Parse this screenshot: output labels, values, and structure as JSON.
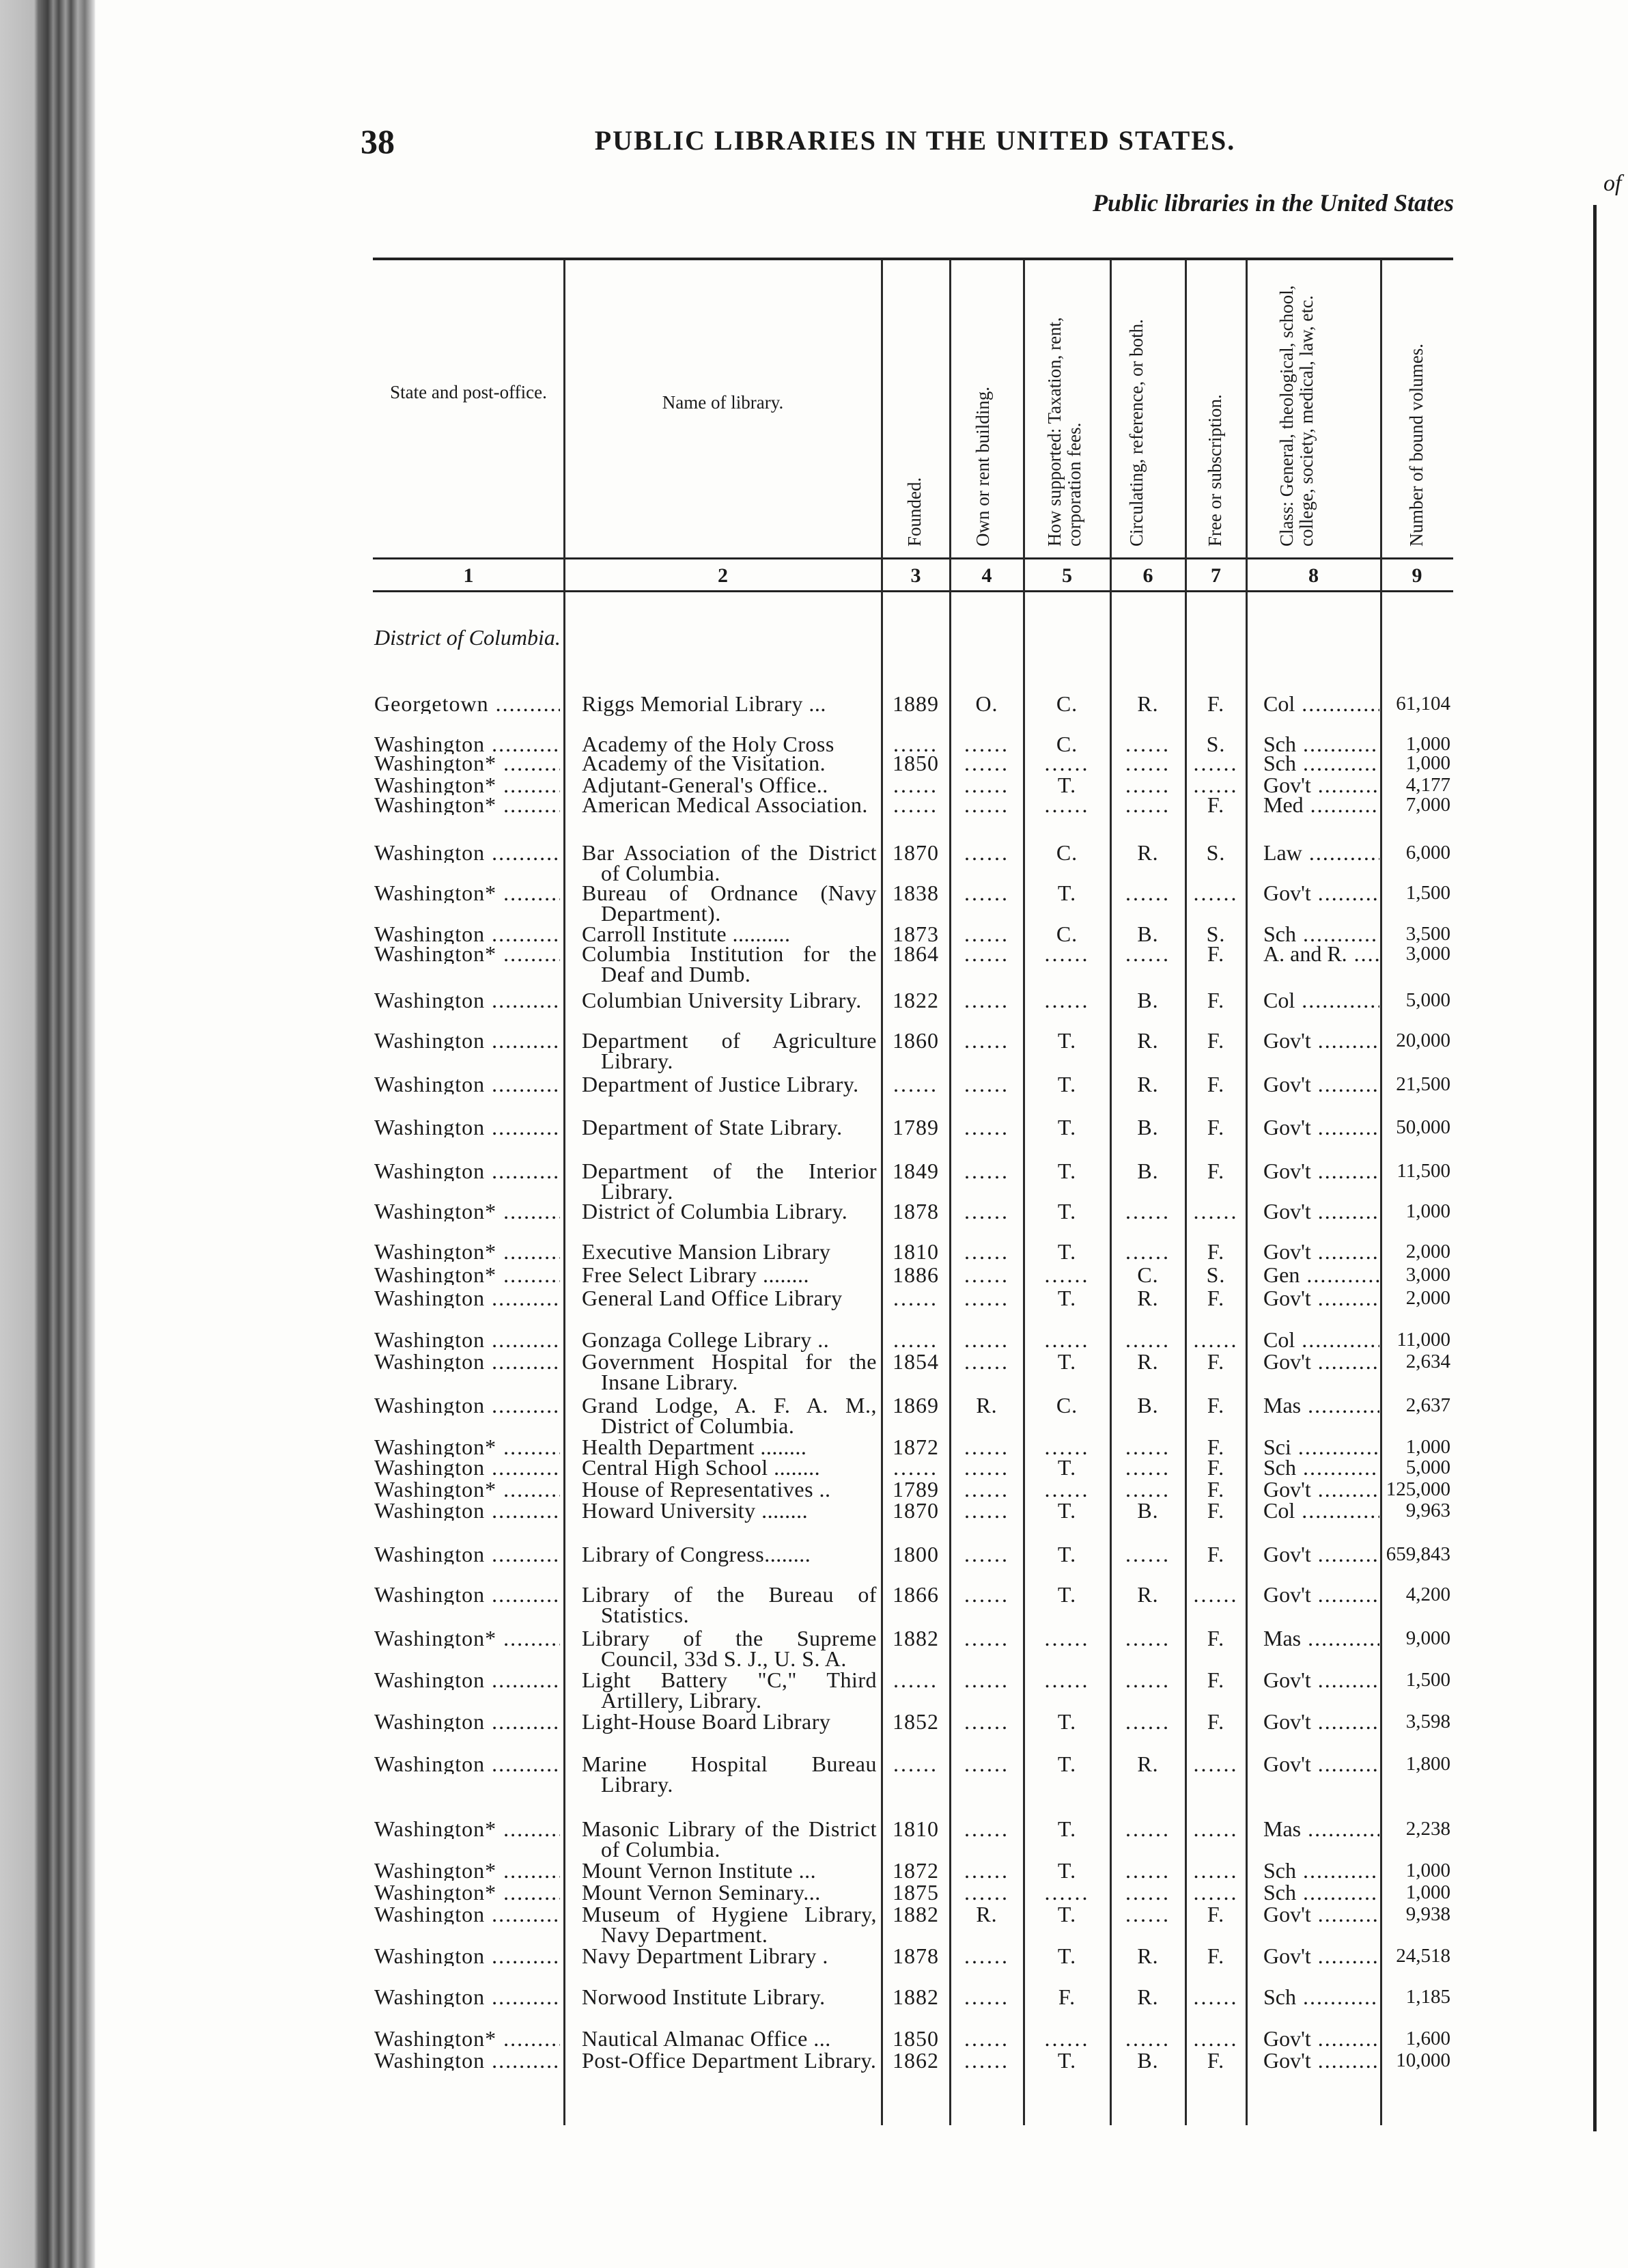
{
  "page": {
    "number": "38",
    "running_title": "PUBLIC LIBRARIES IN THE UNITED STATES.",
    "subtitle": "Public libraries in the United States",
    "next_page_fragment": "of"
  },
  "table": {
    "headers": [
      "State and post-office.",
      "Name of library.",
      "Founded.",
      "Own or rent building.",
      "How supported: Taxation, rent, corporation fees.",
      "Circulating, reference, or both.",
      "Free or subscription.",
      "Class: General, theological, school, college, society, medical, law, etc.",
      "Number of bound volumes."
    ],
    "column_numbers": [
      "1",
      "2",
      "3",
      "4",
      "5",
      "6",
      "7",
      "8",
      "9"
    ],
    "state_heading": "District of Columbia.",
    "rows": [
      {
        "place": "Georgetown",
        "name": "Riggs Memorial Library ...",
        "founded": "1889",
        "own": "O.",
        "support": "C.",
        "circ": "R.",
        "free": "F.",
        "class": "Col",
        "volumes": "61,104"
      },
      {
        "place": "Washington",
        "name": "Academy of the Holy Cross",
        "founded": "",
        "own": "",
        "support": "C.",
        "circ": "",
        "free": "S.",
        "class": "Sch",
        "volumes": "1,000"
      },
      {
        "place": "Washington*",
        "name": "Academy of the Visitation.",
        "founded": "1850",
        "own": "",
        "support": "",
        "circ": "",
        "free": "",
        "class": "Sch",
        "volumes": "1,000"
      },
      {
        "place": "Washington*",
        "name": "Adjutant-General's Office..",
        "founded": "",
        "own": "",
        "support": "T.",
        "circ": "",
        "free": "",
        "class": "Gov't",
        "volumes": "4,177"
      },
      {
        "place": "Washington*",
        "name": "American Medical Association.",
        "founded": "",
        "own": "",
        "support": "",
        "circ": "",
        "free": "F.",
        "class": "Med",
        "volumes": "7,000"
      },
      {
        "place": "Washington",
        "name": "Bar Association of the District of Columbia.",
        "founded": "1870",
        "own": "",
        "support": "C.",
        "circ": "R.",
        "free": "S.",
        "class": "Law",
        "volumes": "6,000"
      },
      {
        "place": "Washington*",
        "name": "Bureau of Ordnance (Navy Department).",
        "founded": "1838",
        "own": "",
        "support": "T.",
        "circ": "",
        "free": "",
        "class": "Gov't",
        "volumes": "1,500"
      },
      {
        "place": "Washington",
        "name": "Carroll Institute ..........",
        "founded": "1873",
        "own": "",
        "support": "C.",
        "circ": "B.",
        "free": "S.",
        "class": "Sch",
        "volumes": "3,500"
      },
      {
        "place": "Washington*",
        "name": "Columbia Institution for the Deaf and Dumb.",
        "founded": "1864",
        "own": "",
        "support": "",
        "circ": "",
        "free": "F.",
        "class": "A. and R.",
        "volumes": "3,000"
      },
      {
        "place": "Washington",
        "name": "Columbian University Library.",
        "founded": "1822",
        "own": "",
        "support": "",
        "circ": "B.",
        "free": "F.",
        "class": "Col",
        "volumes": "5,000"
      },
      {
        "place": "Washington",
        "name": "Department of Agriculture Library.",
        "founded": "1860",
        "own": "",
        "support": "T.",
        "circ": "R.",
        "free": "F.",
        "class": "Gov't",
        "volumes": "20,000"
      },
      {
        "place": "Washington",
        "name": "Department of Justice Library.",
        "founded": "",
        "own": "",
        "support": "T.",
        "circ": "R.",
        "free": "F.",
        "class": "Gov't",
        "volumes": "21,500"
      },
      {
        "place": "Washington",
        "name": "Department of State Library.",
        "founded": "1789",
        "own": "",
        "support": "T.",
        "circ": "B.",
        "free": "F.",
        "class": "Gov't",
        "volumes": "50,000"
      },
      {
        "place": "Washington",
        "name": "Department of the Interior Library.",
        "founded": "1849",
        "own": "",
        "support": "T.",
        "circ": "B.",
        "free": "F.",
        "class": "Gov't",
        "volumes": "11,500"
      },
      {
        "place": "Washington*",
        "name": "District of Columbia Library.",
        "founded": "1878",
        "own": "",
        "support": "T.",
        "circ": "",
        "free": "",
        "class": "Gov't",
        "volumes": "1,000"
      },
      {
        "place": "Washington*",
        "name": "Executive Mansion Library",
        "founded": "1810",
        "own": "",
        "support": "T.",
        "circ": "",
        "free": "F.",
        "class": "Gov't",
        "volumes": "2,000"
      },
      {
        "place": "Washington*",
        "name": "Free Select Library ........",
        "founded": "1886",
        "own": "",
        "support": "",
        "circ": "C.",
        "free": "S.",
        "class": "Gen",
        "volumes": "3,000"
      },
      {
        "place": "Washington",
        "name": "General Land Office Library",
        "founded": "",
        "own": "",
        "support": "T.",
        "circ": "R.",
        "free": "F.",
        "class": "Gov't",
        "volumes": "2,000"
      },
      {
        "place": "Washington",
        "name": "Gonzaga College Library ..",
        "founded": "",
        "own": "",
        "support": "",
        "circ": "",
        "free": "",
        "class": "Col",
        "volumes": "11,000"
      },
      {
        "place": "Washington",
        "name": "Government Hospital for the Insane Library.",
        "founded": "1854",
        "own": "",
        "support": "T.",
        "circ": "R.",
        "free": "F.",
        "class": "Gov't",
        "volumes": "2,634"
      },
      {
        "place": "Washington",
        "name": "Grand Lodge, A. F. A. M., District of Columbia.",
        "founded": "1869",
        "own": "R.",
        "support": "C.",
        "circ": "B.",
        "free": "F.",
        "class": "Mas",
        "volumes": "2,637"
      },
      {
        "place": "Washington*",
        "name": "Health Department ........",
        "founded": "1872",
        "own": "",
        "support": "",
        "circ": "",
        "free": "F.",
        "class": "Sci",
        "volumes": "1,000"
      },
      {
        "place": "Washington",
        "name": "Central High School ........",
        "founded": "",
        "own": "",
        "support": "T.",
        "circ": "",
        "free": "F.",
        "class": "Sch",
        "volumes": "5,000"
      },
      {
        "place": "Washington*",
        "name": "House of Representatives ..",
        "founded": "1789",
        "own": "",
        "support": "",
        "circ": "",
        "free": "F.",
        "class": "Gov't",
        "volumes": "125,000"
      },
      {
        "place": "Washington",
        "name": "Howard University ........",
        "founded": "1870",
        "own": "",
        "support": "T.",
        "circ": "B.",
        "free": "F.",
        "class": "Col",
        "volumes": "9,963"
      },
      {
        "place": "Washington",
        "name": "Library of Congress........",
        "founded": "1800",
        "own": "",
        "support": "T.",
        "circ": "",
        "free": "F.",
        "class": "Gov't",
        "volumes": "659,843"
      },
      {
        "place": "Washington",
        "name": "Library of the Bureau of Statistics.",
        "founded": "1866",
        "own": "",
        "support": "T.",
        "circ": "R.",
        "free": "",
        "class": "Gov't",
        "volumes": "4,200"
      },
      {
        "place": "Washington*",
        "name": "Library of the Supreme Council, 33d S. J., U. S. A.",
        "founded": "1882",
        "own": "",
        "support": "",
        "circ": "",
        "free": "F.",
        "class": "Mas",
        "volumes": "9,000"
      },
      {
        "place": "Washington",
        "name": "Light Battery \"C,\" Third Artillery, Library.",
        "founded": "",
        "own": "",
        "support": "",
        "circ": "",
        "free": "F.",
        "class": "Gov't",
        "volumes": "1,500"
      },
      {
        "place": "Washington",
        "name": "Light-House Board Library",
        "founded": "1852",
        "own": "",
        "support": "T.",
        "circ": "",
        "free": "F.",
        "class": "Gov't",
        "volumes": "3,598"
      },
      {
        "place": "Washington",
        "name": "Marine Hospital Bureau Library.",
        "founded": "",
        "own": "",
        "support": "T.",
        "circ": "R.",
        "free": "",
        "class": "Gov't",
        "volumes": "1,800"
      },
      {
        "place": "Washington*",
        "name": "Masonic Library of the District of Columbia.",
        "founded": "1810",
        "own": "",
        "support": "T.",
        "circ": "",
        "free": "",
        "class": "Mas",
        "volumes": "2,238"
      },
      {
        "place": "Washington*",
        "name": "Mount Vernon Institute ...",
        "founded": "1872",
        "own": "",
        "support": "T.",
        "circ": "",
        "free": "",
        "class": "Sch",
        "volumes": "1,000"
      },
      {
        "place": "Washington*",
        "name": "Mount Vernon Seminary...",
        "founded": "1875",
        "own": "",
        "support": "",
        "circ": "",
        "free": "",
        "class": "Sch",
        "volumes": "1,000"
      },
      {
        "place": "Washington",
        "name": "Museum of Hygiene Library, Navy Department.",
        "founded": "1882",
        "own": "R.",
        "support": "T.",
        "circ": "",
        "free": "F.",
        "class": "Gov't",
        "volumes": "9,938"
      },
      {
        "place": "Washington",
        "name": "Navy Department Library .",
        "founded": "1878",
        "own": "",
        "support": "T.",
        "circ": "R.",
        "free": "F.",
        "class": "Gov't",
        "volumes": "24,518"
      },
      {
        "place": "Washington",
        "name": "Norwood Institute Library.",
        "founded": "1882",
        "own": "",
        "support": "F.",
        "circ": "R.",
        "free": "",
        "class": "Sch",
        "volumes": "1,185"
      },
      {
        "place": "Washington*",
        "name": "Nautical Almanac Office ...",
        "founded": "1850",
        "own": "",
        "support": "",
        "circ": "",
        "free": "",
        "class": "Gov't",
        "volumes": "1,600"
      },
      {
        "place": "Washington",
        "name": "Post-Office Department Library.",
        "founded": "1862",
        "own": "",
        "support": "T.",
        "circ": "B.",
        "free": "F.",
        "class": "Gov't",
        "volumes": "10,000"
      }
    ]
  }
}
